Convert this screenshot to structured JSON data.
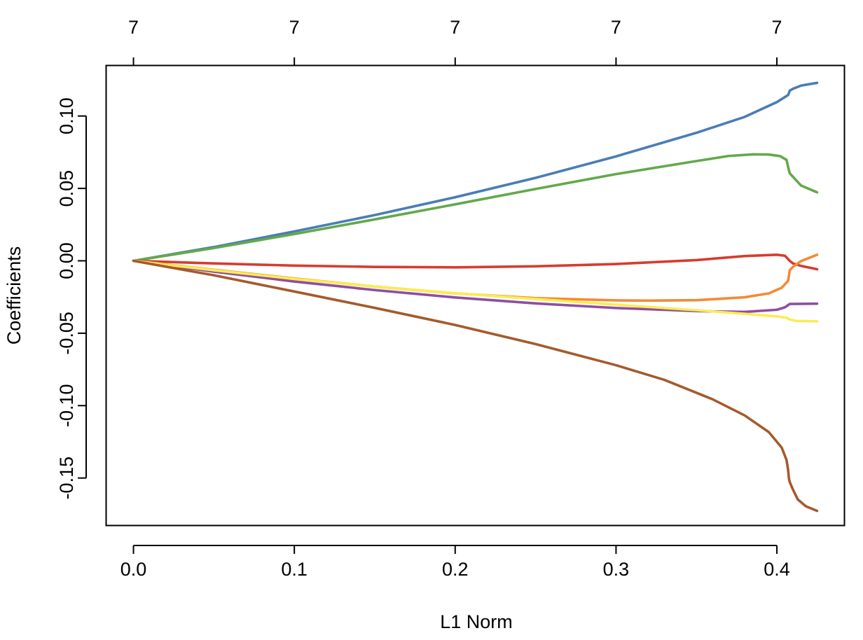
{
  "chart_data": {
    "type": "line",
    "title": "",
    "xlabel": "L1 Norm",
    "ylabel": "Coefficients",
    "xlim": [
      -0.017,
      0.442
    ],
    "ylim": [
      -0.1828,
      0.1349
    ],
    "x_ticks": [
      {
        "value": 0.0,
        "label": "0.0"
      },
      {
        "value": 0.1,
        "label": "0.1"
      },
      {
        "value": 0.2,
        "label": "0.2"
      },
      {
        "value": 0.3,
        "label": "0.3"
      },
      {
        "value": 0.4,
        "label": "0.4"
      }
    ],
    "y_ticks": [
      {
        "value": 0.1,
        "label": "0.10"
      },
      {
        "value": 0.05,
        "label": "0.05"
      },
      {
        "value": 0.0,
        "label": "0.00"
      },
      {
        "value": -0.05,
        "label": "-0.05"
      },
      {
        "value": -0.1,
        "label": "-0.10"
      },
      {
        "value": -0.15,
        "label": "-0.15"
      }
    ],
    "top_axis": {
      "ticks": [
        {
          "value": 0.0,
          "label": "7"
        },
        {
          "value": 0.1,
          "label": "7"
        },
        {
          "value": 0.2,
          "label": "7"
        },
        {
          "value": 0.3,
          "label": "7"
        },
        {
          "value": 0.4,
          "label": "7"
        }
      ]
    },
    "grid": false,
    "series": [
      {
        "name": "blue",
        "color": "#4a7db5",
        "points": [
          [
            0,
            0
          ],
          [
            0.05,
            0.0095
          ],
          [
            0.1,
            0.0203
          ],
          [
            0.15,
            0.0316
          ],
          [
            0.2,
            0.0439
          ],
          [
            0.25,
            0.0573
          ],
          [
            0.3,
            0.0721
          ],
          [
            0.35,
            0.0884
          ],
          [
            0.38,
            0.0994
          ],
          [
            0.4,
            0.1096
          ],
          [
            0.407,
            0.1145
          ],
          [
            0.408,
            0.1175
          ],
          [
            0.41,
            0.1188
          ],
          [
            0.415,
            0.121
          ],
          [
            0.425,
            0.1229
          ]
        ]
      },
      {
        "name": "green",
        "color": "#62a94b",
        "points": [
          [
            0,
            0
          ],
          [
            0.05,
            0.0088
          ],
          [
            0.1,
            0.0185
          ],
          [
            0.15,
            0.0286
          ],
          [
            0.2,
            0.039
          ],
          [
            0.25,
            0.0496
          ],
          [
            0.3,
            0.0599
          ],
          [
            0.35,
            0.0689
          ],
          [
            0.37,
            0.0724
          ],
          [
            0.385,
            0.0735
          ],
          [
            0.395,
            0.0734
          ],
          [
            0.402,
            0.0723
          ],
          [
            0.406,
            0.0697
          ],
          [
            0.407,
            0.0648
          ],
          [
            0.408,
            0.0604
          ],
          [
            0.41,
            0.058
          ],
          [
            0.415,
            0.052
          ],
          [
            0.425,
            0.0473
          ]
        ]
      },
      {
        "name": "red",
        "color": "#d63c2f",
        "points": [
          [
            0,
            0
          ],
          [
            0.05,
            -0.0018
          ],
          [
            0.1,
            -0.0033
          ],
          [
            0.15,
            -0.0042
          ],
          [
            0.2,
            -0.0045
          ],
          [
            0.25,
            -0.0038
          ],
          [
            0.3,
            -0.0022
          ],
          [
            0.35,
            0.0005
          ],
          [
            0.38,
            0.0033
          ],
          [
            0.4,
            0.0042
          ],
          [
            0.405,
            0.0035
          ],
          [
            0.408,
            0.0
          ],
          [
            0.41,
            -0.0018
          ],
          [
            0.415,
            -0.0035
          ],
          [
            0.425,
            -0.0058
          ]
        ]
      },
      {
        "name": "orange",
        "color": "#f28a36",
        "points": [
          [
            0,
            0
          ],
          [
            0.05,
            -0.0062
          ],
          [
            0.1,
            -0.0122
          ],
          [
            0.15,
            -0.0178
          ],
          [
            0.2,
            -0.0225
          ],
          [
            0.25,
            -0.0258
          ],
          [
            0.3,
            -0.0273
          ],
          [
            0.32,
            -0.0275
          ],
          [
            0.35,
            -0.0272
          ],
          [
            0.38,
            -0.0252
          ],
          [
            0.395,
            -0.0225
          ],
          [
            0.403,
            -0.0186
          ],
          [
            0.407,
            -0.0138
          ],
          [
            0.408,
            -0.0065
          ],
          [
            0.41,
            -0.0042
          ],
          [
            0.415,
            -0.0002
          ],
          [
            0.425,
            0.0042
          ]
        ]
      },
      {
        "name": "purple",
        "color": "#8f4da3",
        "points": [
          [
            0,
            0
          ],
          [
            0.05,
            -0.0075
          ],
          [
            0.1,
            -0.0143
          ],
          [
            0.15,
            -0.0202
          ],
          [
            0.2,
            -0.0253
          ],
          [
            0.25,
            -0.0294
          ],
          [
            0.3,
            -0.0326
          ],
          [
            0.35,
            -0.0347
          ],
          [
            0.38,
            -0.0353
          ],
          [
            0.4,
            -0.0338
          ],
          [
            0.405,
            -0.0321
          ],
          [
            0.408,
            -0.0298
          ],
          [
            0.425,
            -0.0296
          ]
        ]
      },
      {
        "name": "yellow",
        "color": "#fbec53",
        "points": [
          [
            0,
            0
          ],
          [
            0.05,
            -0.0065
          ],
          [
            0.1,
            -0.0125
          ],
          [
            0.15,
            -0.0178
          ],
          [
            0.2,
            -0.0224
          ],
          [
            0.25,
            -0.0264
          ],
          [
            0.3,
            -0.0303
          ],
          [
            0.35,
            -0.0341
          ],
          [
            0.38,
            -0.0366
          ],
          [
            0.4,
            -0.0384
          ],
          [
            0.406,
            -0.0393
          ],
          [
            0.408,
            -0.0405
          ],
          [
            0.412,
            -0.0415
          ],
          [
            0.425,
            -0.0418
          ]
        ]
      },
      {
        "name": "brown",
        "color": "#a55a2d",
        "points": [
          [
            0,
            0
          ],
          [
            0.05,
            -0.01
          ],
          [
            0.1,
            -0.0212
          ],
          [
            0.15,
            -0.0325
          ],
          [
            0.2,
            -0.0443
          ],
          [
            0.25,
            -0.0575
          ],
          [
            0.3,
            -0.0721
          ],
          [
            0.33,
            -0.0822
          ],
          [
            0.36,
            -0.0956
          ],
          [
            0.38,
            -0.1068
          ],
          [
            0.395,
            -0.1183
          ],
          [
            0.403,
            -0.129
          ],
          [
            0.406,
            -0.1375
          ],
          [
            0.407,
            -0.1445
          ],
          [
            0.4075,
            -0.1505
          ],
          [
            0.408,
            -0.1528
          ],
          [
            0.41,
            -0.158
          ],
          [
            0.413,
            -0.1648
          ],
          [
            0.418,
            -0.1695
          ],
          [
            0.425,
            -0.1727
          ]
        ]
      }
    ]
  }
}
